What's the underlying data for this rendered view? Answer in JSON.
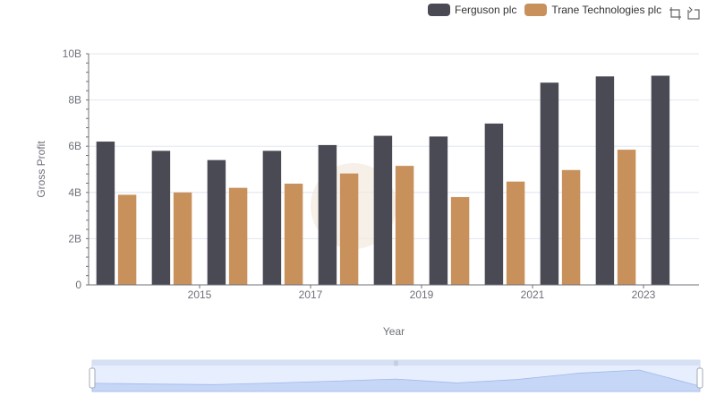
{
  "legend": [
    {
      "name": "Ferguson plc",
      "color": "#4a4a55"
    },
    {
      "name": "Trane Technologies plc",
      "color": "#c8915c"
    }
  ],
  "toolbox": {
    "icons": [
      "zoom-icon",
      "restore-icon"
    ]
  },
  "chart_data": {
    "type": "bar",
    "x": [
      2014,
      2015,
      2016,
      2017,
      2018,
      2019,
      2020,
      2021,
      2022,
      2023,
      2024
    ],
    "x_tick_labels": [
      "2015",
      "2017",
      "2019",
      "2021",
      "2023"
    ],
    "series": [
      {
        "name": "Ferguson plc",
        "color": "#4a4a55",
        "values": [
          6.2,
          5.8,
          5.4,
          5.8,
          6.05,
          6.45,
          6.42,
          6.98,
          8.75,
          9.02,
          9.05
        ]
      },
      {
        "name": "Trane Technologies plc",
        "color": "#c8915c",
        "values": [
          3.9,
          4.0,
          4.2,
          4.38,
          4.82,
          5.15,
          3.8,
          4.47,
          4.97,
          5.85,
          null
        ]
      }
    ],
    "xlabel": "Year",
    "ylabel": "Gross Profit",
    "ylim": [
      0,
      10
    ],
    "y_unit": "B",
    "y_ticks": [
      0,
      2,
      4,
      6,
      8,
      10
    ],
    "y_tick_labels": [
      "0",
      "2B",
      "4B",
      "6B",
      "8B",
      "10B"
    ],
    "grid": true,
    "legend_position": "top-right",
    "data_zoom": {
      "start": 0,
      "end": 100
    }
  }
}
